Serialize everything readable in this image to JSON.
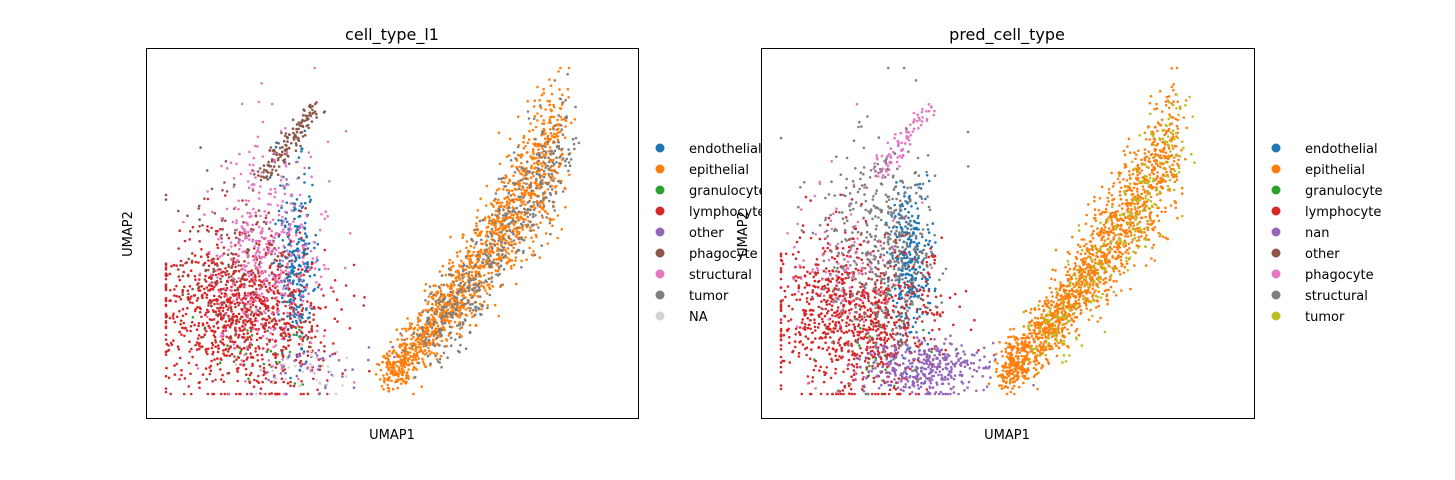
{
  "colors": {
    "blue": "#1f77b4",
    "orange": "#ff7f0e",
    "green": "#2ca02c",
    "red": "#d62728",
    "purple": "#9467bd",
    "brown": "#8c564b",
    "pink": "#e377c2",
    "gray": "#7f7f7f",
    "olive": "#bcbd22",
    "na": "#d3d3d3"
  },
  "chart_data": [
    {
      "type": "scatter",
      "title": "cell_type_l1",
      "xlabel": "UMAP1",
      "ylabel": "UMAP2",
      "ticks": "none",
      "legend_placement": "right, outside axes",
      "legend": [
        {
          "label": "endothelial",
          "color": "#1f77b4"
        },
        {
          "label": "epithelial",
          "color": "#ff7f0e"
        },
        {
          "label": "granulocyte",
          "color": "#2ca02c"
        },
        {
          "label": "lymphocyte",
          "color": "#d62728"
        },
        {
          "label": "other",
          "color": "#9467bd"
        },
        {
          "label": "phagocyte",
          "color": "#8c564b"
        },
        {
          "label": "structural",
          "color": "#e377c2"
        },
        {
          "label": "tumor",
          "color": "#7f7f7f"
        },
        {
          "label": "NA",
          "color": "#d3d3d3"
        }
      ],
      "series": [
        {
          "name": "endothelial",
          "region": "right_lobe",
          "approx_share": 0.07
        },
        {
          "name": "epithelial",
          "region": "right_arc",
          "approx_share": 0.36
        },
        {
          "name": "granulocyte",
          "region": "left_bottom",
          "approx_share": 0.01
        },
        {
          "name": "lymphocyte",
          "region": "left_blob",
          "approx_share": 0.25
        },
        {
          "name": "other",
          "region": "bridge",
          "approx_share": 0.01
        },
        {
          "name": "phagocyte",
          "region": "spike_and_left",
          "approx_share": 0.07
        },
        {
          "name": "structural",
          "region": "center_left",
          "approx_share": 0.1
        },
        {
          "name": "tumor",
          "region": "right_arc_mixed",
          "approx_share": 0.12
        },
        {
          "name": "NA",
          "region": "bridge",
          "approx_share": 0.01
        }
      ]
    },
    {
      "type": "scatter",
      "title": "pred_cell_type",
      "xlabel": "UMAP1",
      "ylabel": "UMAP2",
      "ticks": "none",
      "legend_placement": "right, outside axes",
      "legend": [
        {
          "label": "endothelial",
          "color": "#1f77b4"
        },
        {
          "label": "epithelial",
          "color": "#ff7f0e"
        },
        {
          "label": "granulocyte",
          "color": "#2ca02c"
        },
        {
          "label": "lymphocyte",
          "color": "#d62728"
        },
        {
          "label": "nan",
          "color": "#9467bd"
        },
        {
          "label": "other",
          "color": "#8c564b"
        },
        {
          "label": "phagocyte",
          "color": "#e377c2"
        },
        {
          "label": "structural",
          "color": "#7f7f7f"
        },
        {
          "label": "tumor",
          "color": "#bcbd22"
        }
      ],
      "series": [
        {
          "name": "endothelial",
          "region": "right_lobe",
          "approx_share": 0.07
        },
        {
          "name": "epithelial",
          "region": "right_arc",
          "approx_share": 0.38
        },
        {
          "name": "granulocyte",
          "region": "left_bottom",
          "approx_share": 0.005
        },
        {
          "name": "lymphocyte",
          "region": "left_blob",
          "approx_share": 0.23
        },
        {
          "name": "nan",
          "region": "bridge",
          "approx_share": 0.09
        },
        {
          "name": "other",
          "region": "none",
          "approx_share": 0.0
        },
        {
          "name": "phagocyte",
          "region": "spike_and_left",
          "approx_share": 0.05
        },
        {
          "name": "structural",
          "region": "center_left",
          "approx_share": 0.11
        },
        {
          "name": "tumor",
          "region": "right_arc_mixed",
          "approx_share": 0.07
        }
      ]
    }
  ]
}
